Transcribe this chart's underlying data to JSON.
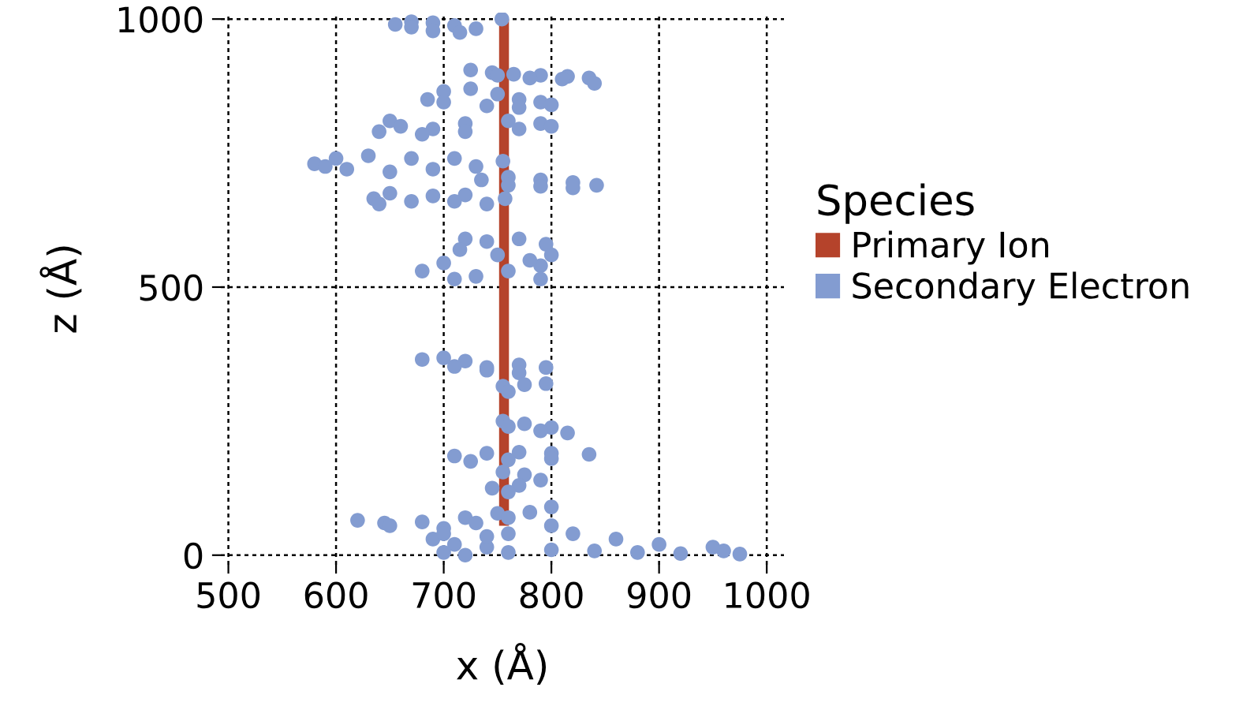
{
  "chart_data": {
    "type": "scatter",
    "xlabel": "x (Å)",
    "ylabel": "z (Å)",
    "legend_title": "Species",
    "xlim": [
      493,
      1016
    ],
    "ylim": [
      -18,
      1012
    ],
    "xticks": [
      500,
      600,
      700,
      800,
      900,
      1000
    ],
    "yticks": [
      0,
      500,
      1000
    ],
    "grid": true,
    "legend": "right",
    "series": [
      {
        "name": "Primary Ion",
        "type": "line",
        "color": "#b5432b",
        "x": [
          756,
          756
        ],
        "values": [
          55,
          1000
        ]
      },
      {
        "name": "Secondary Electron",
        "marker": "circle",
        "color": "#839cd1",
        "x": [
          655,
          670,
          690,
          710,
          730,
          715,
          690,
          670,
          754,
          725,
          745,
          765,
          790,
          815,
          835,
          840,
          810,
          780,
          750,
          700,
          725,
          750,
          770,
          790,
          800,
          770,
          740,
          700,
          685,
          650,
          660,
          690,
          720,
          760,
          790,
          800,
          770,
          720,
          680,
          640,
          580,
          600,
          630,
          670,
          710,
          755,
          730,
          690,
          650,
          610,
          590,
          735,
          760,
          790,
          820,
          842,
          820,
          790,
          760,
          635,
          650,
          690,
          720,
          757,
          740,
          710,
          670,
          640,
          720,
          740,
          770,
          795,
          800,
          790,
          760,
          730,
          710,
          700,
          715,
          750,
          780,
          680,
          790,
          680,
          700,
          720,
          740,
          770,
          795,
          770,
          740,
          710,
          755,
          775,
          795,
          760,
          755,
          775,
          800,
          815,
          790,
          760,
          710,
          740,
          770,
          800,
          835,
          800,
          760,
          725,
          755,
          775,
          790,
          770,
          745,
          760,
          620,
          645,
          680,
          720,
          750,
          760,
          730,
          700,
          690,
          710,
          740,
          700,
          720,
          760,
          800,
          840,
          880,
          920,
          960,
          975,
          950,
          900,
          860,
          820,
          800,
          780,
          800,
          760,
          740,
          700,
          650
        ],
        "values": [
          990,
          995,
          993,
          988,
          982,
          975,
          978,
          985,
          1000,
          905,
          900,
          897,
          895,
          893,
          890,
          880,
          888,
          890,
          895,
          865,
          870,
          860,
          850,
          845,
          840,
          835,
          838,
          845,
          850,
          810,
          800,
          795,
          805,
          810,
          805,
          800,
          795,
          790,
          785,
          790,
          730,
          740,
          745,
          740,
          740,
          735,
          725,
          720,
          715,
          720,
          725,
          700,
          705,
          700,
          695,
          690,
          685,
          688,
          690,
          665,
          675,
          670,
          672,
          665,
          655,
          660,
          660,
          655,
          590,
          585,
          590,
          580,
          560,
          540,
          530,
          520,
          515,
          545,
          570,
          560,
          550,
          530,
          515,
          365,
          368,
          362,
          350,
          355,
          350,
          340,
          345,
          352,
          315,
          318,
          320,
          305,
          250,
          245,
          238,
          228,
          232,
          240,
          185,
          190,
          192,
          190,
          188,
          180,
          178,
          175,
          155,
          150,
          140,
          130,
          125,
          118,
          65,
          60,
          62,
          70,
          78,
          70,
          60,
          50,
          30,
          20,
          15,
          5,
          0,
          5,
          10,
          8,
          5,
          3,
          8,
          2,
          15,
          20,
          30,
          40,
          55,
          80,
          90,
          40,
          35,
          40,
          55
        ]
      }
    ]
  }
}
